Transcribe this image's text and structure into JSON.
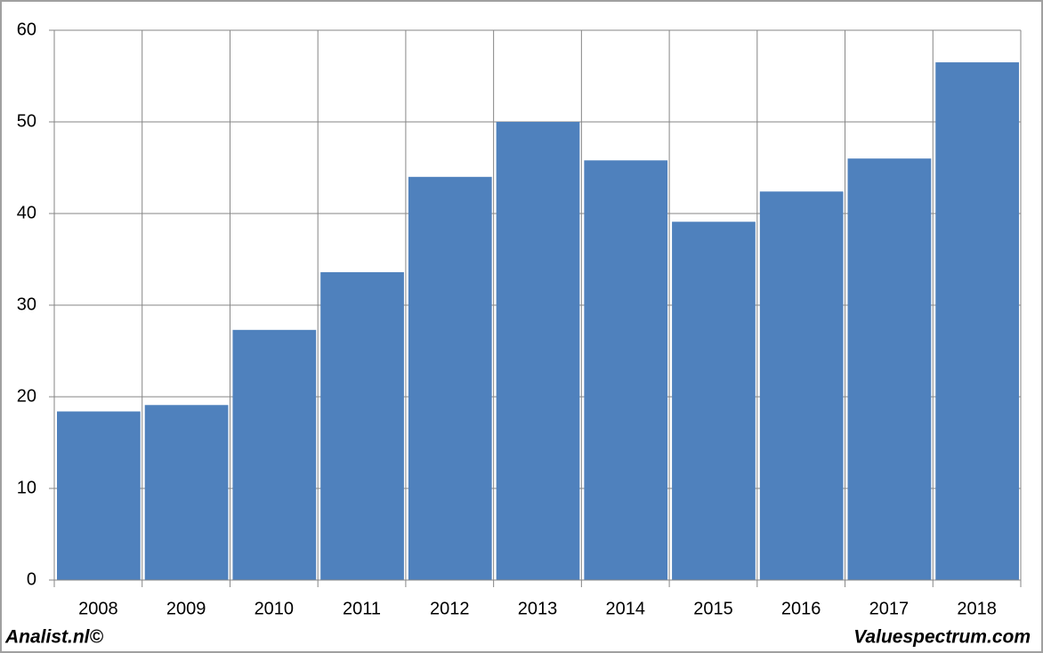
{
  "chart_data": {
    "type": "bar",
    "categories": [
      "2008",
      "2009",
      "2010",
      "2011",
      "2012",
      "2013",
      "2014",
      "2015",
      "2016",
      "2017",
      "2018"
    ],
    "values": [
      18.4,
      19.1,
      27.3,
      33.6,
      44.0,
      50.0,
      45.8,
      39.1,
      42.4,
      46.0,
      56.5
    ],
    "color": "#4f81bd",
    "ylim": [
      0,
      60
    ],
    "yticks": [
      0,
      10,
      20,
      30,
      40,
      50,
      60
    ],
    "grid": true,
    "footer_left": "Analist.nl©",
    "footer_right": "Valuespectrum.com"
  }
}
